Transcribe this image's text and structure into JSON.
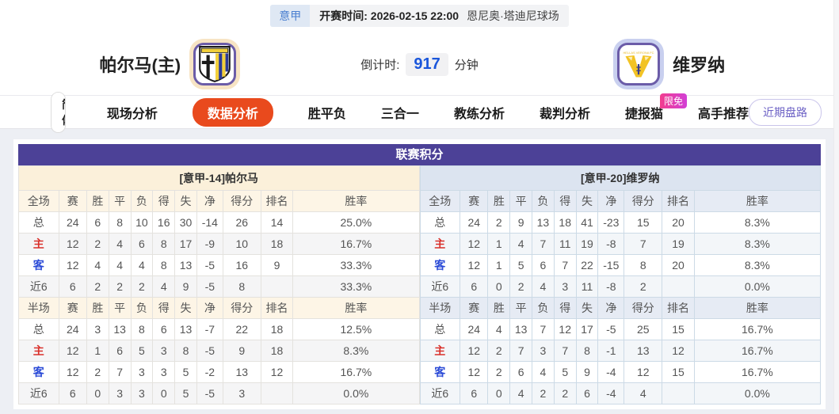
{
  "theme": {
    "header_purple": "#4c4197",
    "active_tab_orange": "#e94a1d",
    "badge_pink": "#e83bac",
    "home_label_red": "#d9302a",
    "away_label_blue": "#2b4bd7",
    "countdown_blue": "#1a56db"
  },
  "header": {
    "league": "意甲",
    "kickoff_label": "开赛时间:",
    "kickoff_time": "2026-02-15 22:00",
    "venue": "恩尼奥·塔迪尼球场",
    "home_team": "帕尔马(主)",
    "away_team": "维罗纳",
    "countdown_label": "倒计时:",
    "countdown_value": "917",
    "countdown_unit": "分钟"
  },
  "nav": {
    "lang_simplified": "简体",
    "lang_traditional": "繁体",
    "tabs": [
      {
        "label": "现场分析"
      },
      {
        "label": "数据分析",
        "active": true
      },
      {
        "label": "胜平负"
      },
      {
        "label": "三合一"
      },
      {
        "label": "教练分析"
      },
      {
        "label": "裁判分析"
      },
      {
        "label": "捷报猫",
        "badge": "限免"
      },
      {
        "label": "高手推荐"
      }
    ],
    "recent_button": "近期盘路"
  },
  "league_table": {
    "title": "联赛积分",
    "columns_full": [
      "全场",
      "赛",
      "胜",
      "平",
      "负",
      "得",
      "失",
      "净",
      "得分",
      "排名",
      "胜率"
    ],
    "columns_half": [
      "半场",
      "赛",
      "胜",
      "平",
      "负",
      "得",
      "失",
      "净",
      "得分",
      "排名",
      "胜率"
    ],
    "home": {
      "header": "[意甲-14]帕尔马",
      "full_rows": [
        [
          "总",
          "24",
          "6",
          "8",
          "10",
          "16",
          "30",
          "-14",
          "26",
          "14",
          "25.0%"
        ],
        [
          "主",
          "12",
          "2",
          "4",
          "6",
          "8",
          "17",
          "-9",
          "10",
          "18",
          "16.7%"
        ],
        [
          "客",
          "12",
          "4",
          "4",
          "4",
          "8",
          "13",
          "-5",
          "16",
          "9",
          "33.3%"
        ],
        [
          "近6",
          "6",
          "2",
          "2",
          "2",
          "4",
          "9",
          "-5",
          "8",
          "",
          "33.3%"
        ]
      ],
      "half_rows": [
        [
          "总",
          "24",
          "3",
          "13",
          "8",
          "6",
          "13",
          "-7",
          "22",
          "18",
          "12.5%"
        ],
        [
          "主",
          "12",
          "1",
          "6",
          "5",
          "3",
          "8",
          "-5",
          "9",
          "18",
          "8.3%"
        ],
        [
          "客",
          "12",
          "2",
          "7",
          "3",
          "3",
          "5",
          "-2",
          "13",
          "12",
          "16.7%"
        ],
        [
          "近6",
          "6",
          "0",
          "3",
          "3",
          "0",
          "5",
          "-5",
          "3",
          "",
          "0.0%"
        ]
      ]
    },
    "away": {
      "header": "[意甲-20]维罗纳",
      "full_rows": [
        [
          "总",
          "24",
          "2",
          "9",
          "13",
          "18",
          "41",
          "-23",
          "15",
          "20",
          "8.3%"
        ],
        [
          "主",
          "12",
          "1",
          "4",
          "7",
          "11",
          "19",
          "-8",
          "7",
          "19",
          "8.3%"
        ],
        [
          "客",
          "12",
          "1",
          "5",
          "6",
          "7",
          "22",
          "-15",
          "8",
          "20",
          "8.3%"
        ],
        [
          "近6",
          "6",
          "0",
          "2",
          "4",
          "3",
          "11",
          "-8",
          "2",
          "",
          "0.0%"
        ]
      ],
      "half_rows": [
        [
          "总",
          "24",
          "4",
          "13",
          "7",
          "12",
          "17",
          "-5",
          "25",
          "15",
          "16.7%"
        ],
        [
          "主",
          "12",
          "2",
          "7",
          "3",
          "7",
          "8",
          "-1",
          "13",
          "12",
          "16.7%"
        ],
        [
          "客",
          "12",
          "2",
          "6",
          "4",
          "5",
          "9",
          "-4",
          "12",
          "15",
          "16.7%"
        ],
        [
          "近6",
          "6",
          "0",
          "4",
          "2",
          "2",
          "6",
          "-4",
          "4",
          "",
          "0.0%"
        ]
      ]
    }
  }
}
